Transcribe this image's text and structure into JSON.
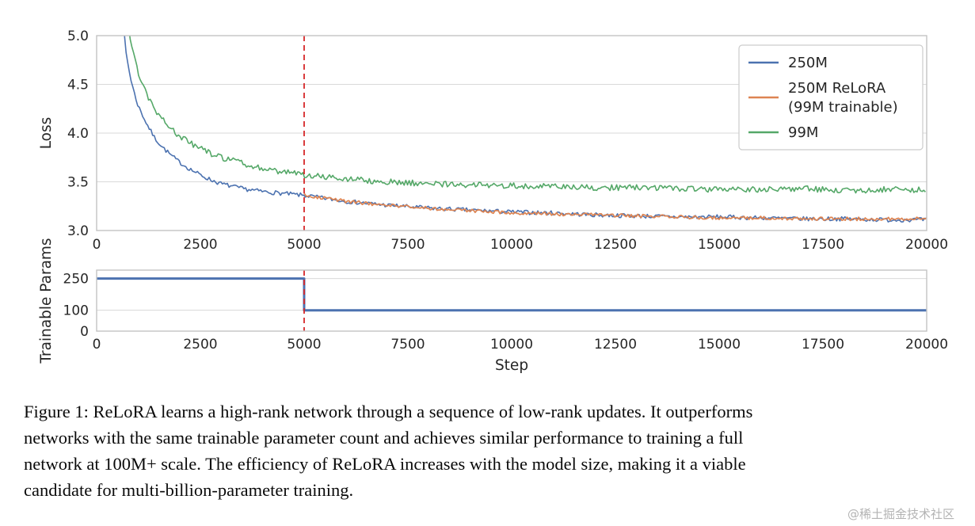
{
  "figure": {
    "caption_lines": [
      "Figure 1: ReLoRA learns a high-rank network through a sequence of low-rank updates. It outperforms",
      "networks with the same trainable parameter count and achieves similar performance to training a full",
      "network at 100M+ scale. The efficiency of ReLoRA increases with the model size, making it a viable",
      "candidate for multi-billion-parameter training."
    ],
    "watermark": "@稀土掘金技术社区"
  },
  "chart_data": [
    {
      "type": "line",
      "name": "loss-chart",
      "title": "",
      "xlabel": "",
      "ylabel": "Loss",
      "xlim": [
        0,
        20000
      ],
      "ylim": [
        3.0,
        5.0
      ],
      "xticks": [
        0,
        2500,
        5000,
        7500,
        10000,
        12500,
        15000,
        17500,
        20000
      ],
      "xtick_labels": [
        "0",
        "2500",
        "5000",
        "7500",
        "10000",
        "12500",
        "15000",
        "17500",
        "20000"
      ],
      "yticks": [
        3.0,
        3.5,
        4.0,
        4.5,
        5.0
      ],
      "ytick_labels": [
        "3.0",
        "3.5",
        "4.0",
        "4.5",
        "5.0"
      ],
      "grid": "horizontal",
      "legend_position": "upper right",
      "vline": {
        "x": 5000,
        "color": "#d62728",
        "style": "dashed"
      },
      "series": [
        {
          "name": "250M",
          "label_lines": [
            "250M"
          ],
          "color": "#4C72B0",
          "lw": 1.6,
          "noise": 0.022,
          "points": [
            [
              550,
              5.6
            ],
            [
              700,
              4.85
            ],
            [
              800,
              4.6
            ],
            [
              900,
              4.42
            ],
            [
              1000,
              4.28
            ],
            [
              1200,
              4.1
            ],
            [
              1400,
              3.95
            ],
            [
              1600,
              3.85
            ],
            [
              1800,
              3.77
            ],
            [
              2000,
              3.7
            ],
            [
              2250,
              3.63
            ],
            [
              2500,
              3.57
            ],
            [
              2750,
              3.52
            ],
            [
              3000,
              3.48
            ],
            [
              3500,
              3.43
            ],
            [
              4000,
              3.4
            ],
            [
              4500,
              3.38
            ],
            [
              5000,
              3.36
            ],
            [
              5500,
              3.33
            ],
            [
              6000,
              3.3
            ],
            [
              7000,
              3.26
            ],
            [
              8000,
              3.23
            ],
            [
              9000,
              3.21
            ],
            [
              10000,
              3.19
            ],
            [
              11000,
              3.18
            ],
            [
              12000,
              3.16
            ],
            [
              13000,
              3.15
            ],
            [
              14000,
              3.14
            ],
            [
              15000,
              3.14
            ],
            [
              16000,
              3.13
            ],
            [
              17000,
              3.12
            ],
            [
              18000,
              3.12
            ],
            [
              19000,
              3.11
            ],
            [
              20000,
              3.11
            ]
          ]
        },
        {
          "name": "250M ReLoRA (99M trainable)",
          "label_lines": [
            "250M ReLoRA",
            "(99M trainable)"
          ],
          "color": "#DD8452",
          "lw": 1.7,
          "noise": 0.018,
          "points": [
            [
              5000,
              3.37
            ],
            [
              5500,
              3.33
            ],
            [
              6000,
              3.3
            ],
            [
              7000,
              3.26
            ],
            [
              8000,
              3.23
            ],
            [
              9000,
              3.2
            ],
            [
              10000,
              3.18
            ],
            [
              11000,
              3.17
            ],
            [
              12000,
              3.16
            ],
            [
              13000,
              3.15
            ],
            [
              14000,
              3.14
            ],
            [
              15000,
              3.13
            ],
            [
              16000,
              3.13
            ],
            [
              17000,
              3.12
            ],
            [
              18000,
              3.12
            ],
            [
              19000,
              3.12
            ],
            [
              20000,
              3.12
            ]
          ]
        },
        {
          "name": "99M",
          "label_lines": [
            "99M"
          ],
          "color": "#55A868",
          "lw": 1.6,
          "noise": 0.03,
          "points": [
            [
              650,
              5.6
            ],
            [
              800,
              5.0
            ],
            [
              900,
              4.78
            ],
            [
              1000,
              4.62
            ],
            [
              1200,
              4.4
            ],
            [
              1400,
              4.25
            ],
            [
              1600,
              4.13
            ],
            [
              1800,
              4.04
            ],
            [
              2000,
              3.97
            ],
            [
              2250,
              3.9
            ],
            [
              2500,
              3.84
            ],
            [
              2750,
              3.79
            ],
            [
              3000,
              3.75
            ],
            [
              3500,
              3.69
            ],
            [
              4000,
              3.64
            ],
            [
              4500,
              3.6
            ],
            [
              5000,
              3.57
            ],
            [
              5500,
              3.55
            ],
            [
              6000,
              3.53
            ],
            [
              7000,
              3.5
            ],
            [
              8000,
              3.48
            ],
            [
              9000,
              3.47
            ],
            [
              10000,
              3.46
            ],
            [
              11000,
              3.45
            ],
            [
              12000,
              3.44
            ],
            [
              13000,
              3.44
            ],
            [
              14000,
              3.43
            ],
            [
              15000,
              3.42
            ],
            [
              16000,
              3.42
            ],
            [
              17000,
              3.43
            ],
            [
              18000,
              3.41
            ],
            [
              19000,
              3.42
            ],
            [
              20000,
              3.42
            ]
          ]
        }
      ]
    },
    {
      "type": "line",
      "name": "params-chart",
      "title": "",
      "xlabel": "Step",
      "ylabel": "Trainable Params",
      "xlim": [
        0,
        20000
      ],
      "ylim": [
        0,
        290
      ],
      "xticks": [
        0,
        2500,
        5000,
        7500,
        10000,
        12500,
        15000,
        17500,
        20000
      ],
      "xtick_labels": [
        "0",
        "2500",
        "5000",
        "7500",
        "10000",
        "12500",
        "15000",
        "17500",
        "20000"
      ],
      "yticks": [
        0,
        100,
        250
      ],
      "ytick_labels": [
        "0",
        "100",
        "250"
      ],
      "grid": "horizontal",
      "vline": {
        "x": 5000,
        "color": "#d62728",
        "style": "dashed"
      },
      "series": [
        {
          "name": "trainable-params",
          "color": "#4C72B0",
          "lw": 3,
          "noise": 0,
          "points": [
            [
              0,
              250
            ],
            [
              5000,
              250
            ],
            [
              5000,
              99
            ],
            [
              20000,
              99
            ]
          ]
        }
      ]
    }
  ],
  "style": {
    "grid_color": "#d9d9d9",
    "spine_color": "#c3c3c3",
    "tick_color": "#262626"
  }
}
